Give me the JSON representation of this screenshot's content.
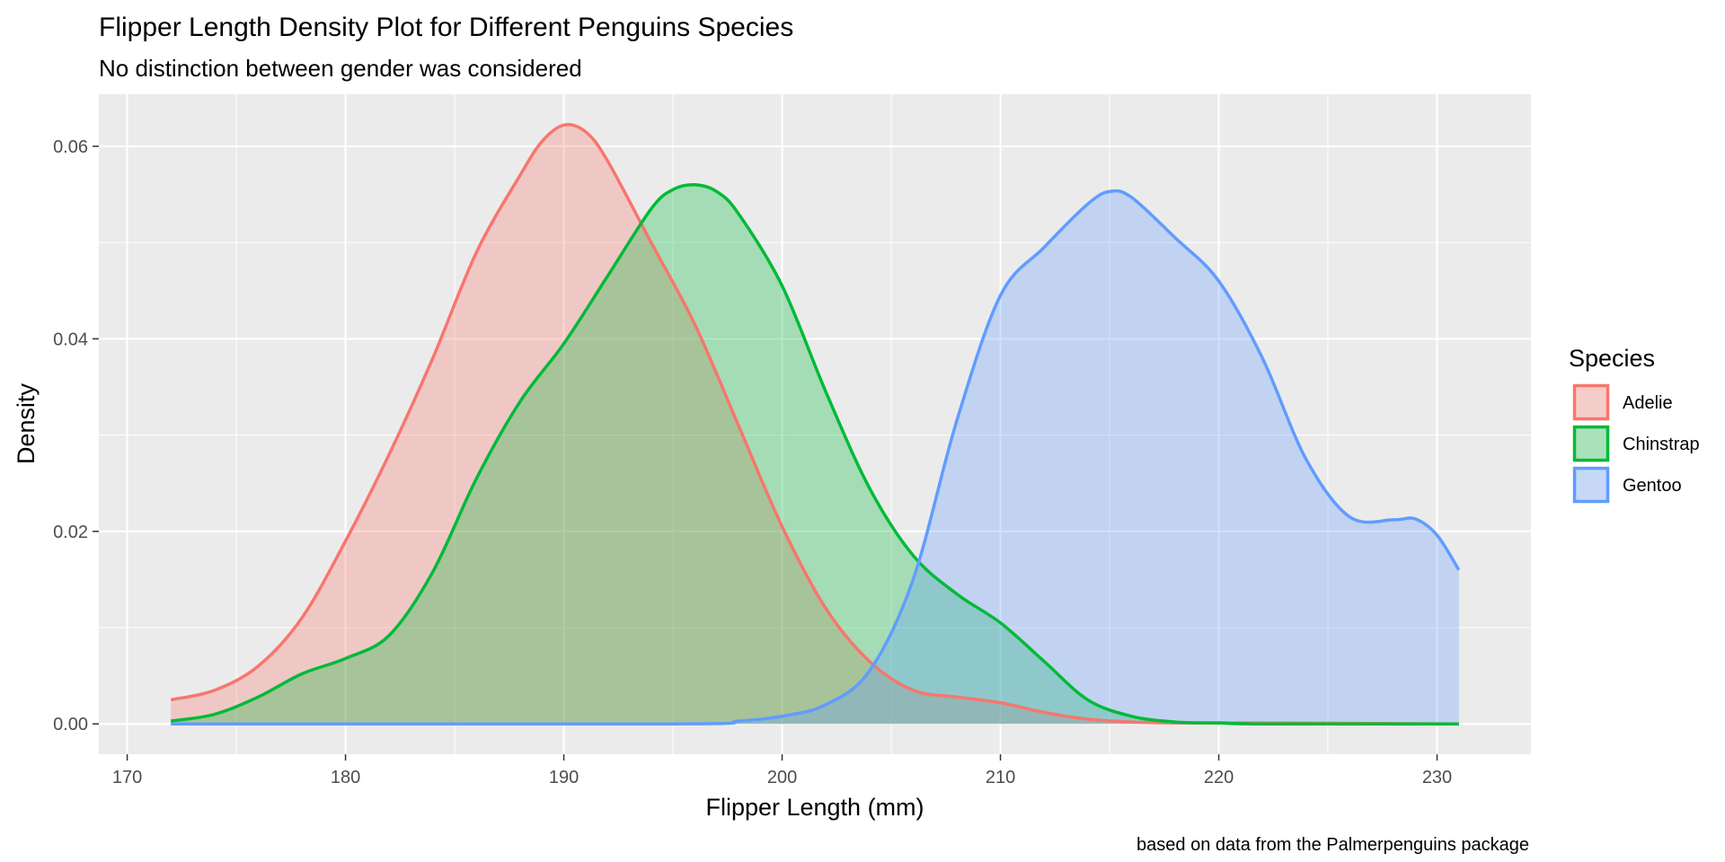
{
  "chart_data": {
    "type": "area",
    "title": "Flipper Length Density Plot for Different Penguins Species",
    "subtitle": "No distinction between gender was considered",
    "caption": "based on data from the Palmerpenguins package",
    "xlabel": "Flipper Length (mm)",
    "ylabel": "Density",
    "xlim": [
      168.7,
      234.3
    ],
    "ylim": [
      -0.00315,
      0.0654
    ],
    "x_ticks": [
      170,
      180,
      190,
      200,
      210,
      220,
      230
    ],
    "x_tick_labels": [
      "170",
      "180",
      "190",
      "200",
      "210",
      "220",
      "230"
    ],
    "y_ticks": [
      0,
      0.02,
      0.04,
      0.06
    ],
    "y_tick_labels": [
      "0.00",
      "0.02",
      "0.04",
      "0.06"
    ],
    "grid": true,
    "legend": {
      "title": "Species",
      "position": "right",
      "entries": [
        "Adelie",
        "Chinstrap",
        "Gentoo"
      ]
    },
    "series": [
      {
        "name": "Adelie",
        "color": "#F8766D",
        "x": [
          172,
          174,
          176,
          178,
          180,
          182,
          184,
          186,
          188,
          189,
          190,
          191,
          192,
          194,
          196,
          198,
          200,
          202,
          204,
          206,
          208,
          210,
          212,
          214,
          216,
          218,
          220,
          222,
          231
        ],
        "y": [
          0.0025,
          0.0035,
          0.006,
          0.011,
          0.019,
          0.028,
          0.038,
          0.049,
          0.057,
          0.0605,
          0.0622,
          0.0615,
          0.0585,
          0.05,
          0.0415,
          0.031,
          0.0205,
          0.012,
          0.0065,
          0.0035,
          0.0028,
          0.0022,
          0.0012,
          0.0005,
          0.0002,
          0.0001,
          0.0001,
          0.0001,
          0.0
        ]
      },
      {
        "name": "Chinstrap",
        "color": "#00BA38",
        "x": [
          172,
          174,
          176,
          178,
          180,
          182,
          184,
          186,
          188,
          190,
          192,
          194,
          195,
          196,
          197,
          198,
          200,
          202,
          204,
          206,
          208,
          210,
          212,
          214,
          216,
          218,
          220,
          222,
          231
        ],
        "y": [
          0.0003,
          0.001,
          0.0028,
          0.0052,
          0.0068,
          0.0092,
          0.0158,
          0.0255,
          0.0335,
          0.0395,
          0.0465,
          0.0535,
          0.0555,
          0.056,
          0.0553,
          0.053,
          0.0455,
          0.0345,
          0.0245,
          0.0175,
          0.0135,
          0.0105,
          0.0065,
          0.0025,
          0.0008,
          0.0002,
          0.0001,
          0.0,
          0.0
        ]
      },
      {
        "name": "Gentoo",
        "color": "#619CFF",
        "x": [
          172,
          195,
          198,
          200,
          202,
          204,
          206,
          208,
          210,
          212,
          214,
          215,
          216,
          218,
          220,
          222,
          224,
          226,
          228,
          229,
          230,
          231
        ],
        "y": [
          0.0,
          0.0,
          0.0003,
          0.0008,
          0.002,
          0.0055,
          0.015,
          0.0315,
          0.0445,
          0.0495,
          0.054,
          0.0553,
          0.0547,
          0.0505,
          0.046,
          0.038,
          0.0275,
          0.0215,
          0.0212,
          0.0213,
          0.0196,
          0.016
        ]
      }
    ]
  }
}
